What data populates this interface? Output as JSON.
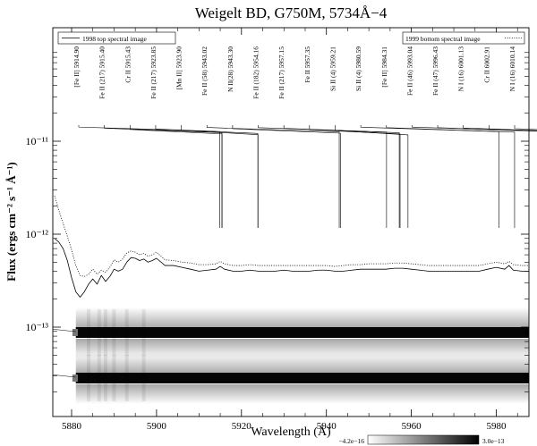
{
  "chart_data": {
    "type": "line",
    "title": "Weigelt BD, G750M, 5734Å−4",
    "xlabel": "Wavelength (Å)",
    "ylabel": "Flux (ergs cm⁻² s⁻¹ Å⁻¹)",
    "xlim": [
      5870,
      6022
    ],
    "ylim": [
      2e-14,
      2e-11
    ],
    "y_scale": "log",
    "x_ticks": [
      5880,
      5900,
      5920,
      5940,
      5960,
      5980,
      6000,
      6020
    ],
    "y_ticks": [
      {
        "value": 1e-13,
        "label": "10⁻¹³"
      },
      {
        "value": 1e-12,
        "label": "10⁻¹²"
      },
      {
        "value": 1e-11,
        "label": "10⁻¹¹"
      }
    ],
    "legend": [
      {
        "label": "1998 top spectral image",
        "style": "solid",
        "placement": "top-left"
      },
      {
        "label": "1999 bottom spectral image",
        "style": "dotted",
        "placement": "top-right"
      }
    ],
    "series": [
      {
        "name": "1998 top spectral image",
        "style": "solid",
        "x": [
          5876,
          5877,
          5878,
          5879,
          5880,
          5881,
          5882,
          5883,
          5884,
          5885,
          5886,
          5887,
          5888,
          5889,
          5890,
          5891,
          5892,
          5893,
          5894,
          5895,
          5896,
          5897,
          5898,
          5899,
          5900,
          5902,
          5904,
          5906,
          5908,
          5910,
          5912,
          5914,
          5915,
          5916,
          5918,
          5920,
          5922,
          5924,
          5926,
          5928,
          5930,
          5932,
          5934,
          5936,
          5938,
          5940,
          5942,
          5944,
          5946,
          5948,
          5950,
          5952,
          5954,
          5956,
          5958,
          5960,
          5962,
          5964,
          5966,
          5968,
          5970,
          5972,
          5974,
          5976,
          5978,
          5980,
          5982,
          5983,
          5984,
          5986,
          5988,
          5990,
          5991,
          5992,
          5993,
          5994,
          5996,
          5998,
          6000,
          6001,
          6002,
          6004,
          6006,
          6008,
          6009,
          6010,
          6012,
          6014,
          6016,
          6018
        ],
        "y": [
          9e-13,
          8.2e-13,
          7e-13,
          5.2e-13,
          3.4e-13,
          2.4e-13,
          2.1e-13,
          2.4e-13,
          2.9e-13,
          3.3e-13,
          2.9e-13,
          3.6e-13,
          3.1e-13,
          3.5e-13,
          4.2e-13,
          4e-13,
          4.2e-13,
          5e-13,
          5.6e-13,
          5.5e-13,
          5.2e-13,
          5.4e-13,
          5e-13,
          5.2e-13,
          5.5e-13,
          4.6e-13,
          4.6e-13,
          4.4e-13,
          4.2e-13,
          4e-13,
          4.1e-13,
          4.2e-13,
          4.5e-13,
          4.2e-13,
          4e-13,
          4e-13,
          4.1e-13,
          4e-13,
          4e-13,
          4e-13,
          4.1e-13,
          4e-13,
          4e-13,
          4e-13,
          4.1e-13,
          4.1e-13,
          4e-13,
          4e-13,
          4.1e-13,
          4.2e-13,
          4.2e-13,
          4.2e-13,
          4.2e-13,
          4.3e-13,
          4.3e-13,
          4.2e-13,
          4.1e-13,
          4e-13,
          4e-13,
          4e-13,
          4e-13,
          4e-13,
          4e-13,
          4e-13,
          4.2e-13,
          4.4e-13,
          4.2e-13,
          4.6e-13,
          4.1e-13,
          4e-13,
          4e-13,
          5e-13,
          7.5e-13,
          1.05e-12,
          6.5e-13,
          4.3e-13,
          4e-13,
          4e-13,
          4.2e-13,
          4.6e-13,
          4.1e-13,
          4e-13,
          4e-13,
          4.4e-13,
          5.5e-13,
          4.3e-13,
          4e-13,
          4e-13,
          4e-13,
          4.1e-13
        ]
      },
      {
        "name": "1999 bottom spectral image",
        "style": "dotted",
        "x": [
          5876,
          5877,
          5878,
          5879,
          5880,
          5881,
          5882,
          5883,
          5884,
          5885,
          5886,
          5887,
          5888,
          5889,
          5890,
          5891,
          5892,
          5893,
          5894,
          5895,
          5896,
          5897,
          5898,
          5899,
          5900,
          5902,
          5904,
          5906,
          5908,
          5910,
          5912,
          5914,
          5915,
          5916,
          5918,
          5920,
          5922,
          5924,
          5926,
          5928,
          5930,
          5932,
          5934,
          5936,
          5938,
          5940,
          5942,
          5944,
          5946,
          5948,
          5950,
          5952,
          5954,
          5956,
          5958,
          5960,
          5962,
          5964,
          5966,
          5968,
          5970,
          5972,
          5974,
          5976,
          5978,
          5980,
          5982,
          5983,
          5984,
          5986,
          5988,
          5990,
          5991,
          5992,
          5993,
          5994,
          5996,
          5998,
          6000,
          6001,
          6002,
          6004,
          6006,
          6008,
          6009,
          6010,
          6012,
          6014,
          6016,
          6018
        ],
        "y": [
          2.6e-12,
          1.8e-12,
          1.3e-12,
          9.5e-13,
          6.8e-13,
          4.6e-13,
          3.6e-13,
          3.5e-13,
          3.7e-13,
          4.2e-13,
          3.7e-13,
          4.1e-13,
          3.9e-13,
          4.4e-13,
          5.3e-13,
          5e-13,
          5.4e-13,
          6.3e-13,
          6.6e-13,
          6.4e-13,
          6e-13,
          6.2e-13,
          5.8e-13,
          6e-13,
          6.4e-13,
          5.3e-13,
          5.2e-13,
          5e-13,
          4.9e-13,
          4.7e-13,
          4.7e-13,
          4.8e-13,
          5.1e-13,
          4.8e-13,
          4.6e-13,
          4.6e-13,
          4.7e-13,
          4.6e-13,
          4.6e-13,
          4.6e-13,
          4.6e-13,
          4.6e-13,
          4.6e-13,
          4.6e-13,
          4.6e-13,
          4.6e-13,
          4.5e-13,
          4.6e-13,
          4.7e-13,
          4.7e-13,
          4.8e-13,
          4.8e-13,
          4.8e-13,
          4.9e-13,
          4.9e-13,
          4.8e-13,
          4.7e-13,
          4.6e-13,
          4.6e-13,
          4.6e-13,
          4.6e-13,
          4.6e-13,
          4.6e-13,
          4.6e-13,
          4.8e-13,
          5e-13,
          4.8e-13,
          5.1e-13,
          4.7e-13,
          4.6e-13,
          4.6e-13,
          5.6e-13,
          8e-13,
          1.05e-12,
          7e-13,
          4.9e-13,
          4.6e-13,
          4.6e-13,
          4.8e-13,
          5.1e-13,
          4.7e-13,
          4.6e-13,
          4.6e-13,
          4.9e-13,
          5.8e-13,
          4.8e-13,
          4.6e-13,
          4.6e-13,
          4.6e-13,
          4.7e-13
        ]
      }
    ],
    "line_ids": [
      {
        "label": "[Fe II]  5914.90",
        "wavelength": 5914.9
      },
      {
        "label": "Fe II (217) 5915.40",
        "wavelength": 5915.4
      },
      {
        "label": "Cr II 5915.43",
        "wavelength": 5915.43
      },
      {
        "label": "Fe II (217) 5923.85",
        "wavelength": 5923.85
      },
      {
        "label": "[Mn II] 5923.90",
        "wavelength": 5923.9
      },
      {
        "label": "Fe II (58) 5943.02",
        "wavelength": 5943.02
      },
      {
        "label": "N II(28) 5943.30",
        "wavelength": 5943.3
      },
      {
        "label": "Fe II (182) 5954.16",
        "wavelength": 5954.16
      },
      {
        "label": "Fe II (217) 5957.15",
        "wavelength": 5957.15
      },
      {
        "label": "Fe II 5957.35",
        "wavelength": 5957.35
      },
      {
        "label": "Si II (4) 5959.21",
        "wavelength": 5959.21
      },
      {
        "label": "Si II (4) 5980.59",
        "wavelength": 5980.59
      },
      {
        "label": "[Fe II]  5984.31",
        "wavelength": 5984.31
      },
      {
        "label": "Fe II (46) 5993.04",
        "wavelength": 5993.04
      },
      {
        "label": "Fe II (47) 5996.43",
        "wavelength": 5996.43
      },
      {
        "label": "N I (16) 6001.13",
        "wavelength": 6001.13
      },
      {
        "label": "Cr II 6002.91",
        "wavelength": 6002.91
      },
      {
        "label": "N I (16) 6010.14",
        "wavelength": 6010.14
      }
    ],
    "spectral_images": [
      {
        "left_label": "BD",
        "right_label": "A"
      },
      {
        "left_label": "BD",
        "right_label": "A"
      }
    ],
    "colorbar": {
      "min_label": "−4.2e−16",
      "max_label": "3.0e−13"
    },
    "grid": false
  }
}
